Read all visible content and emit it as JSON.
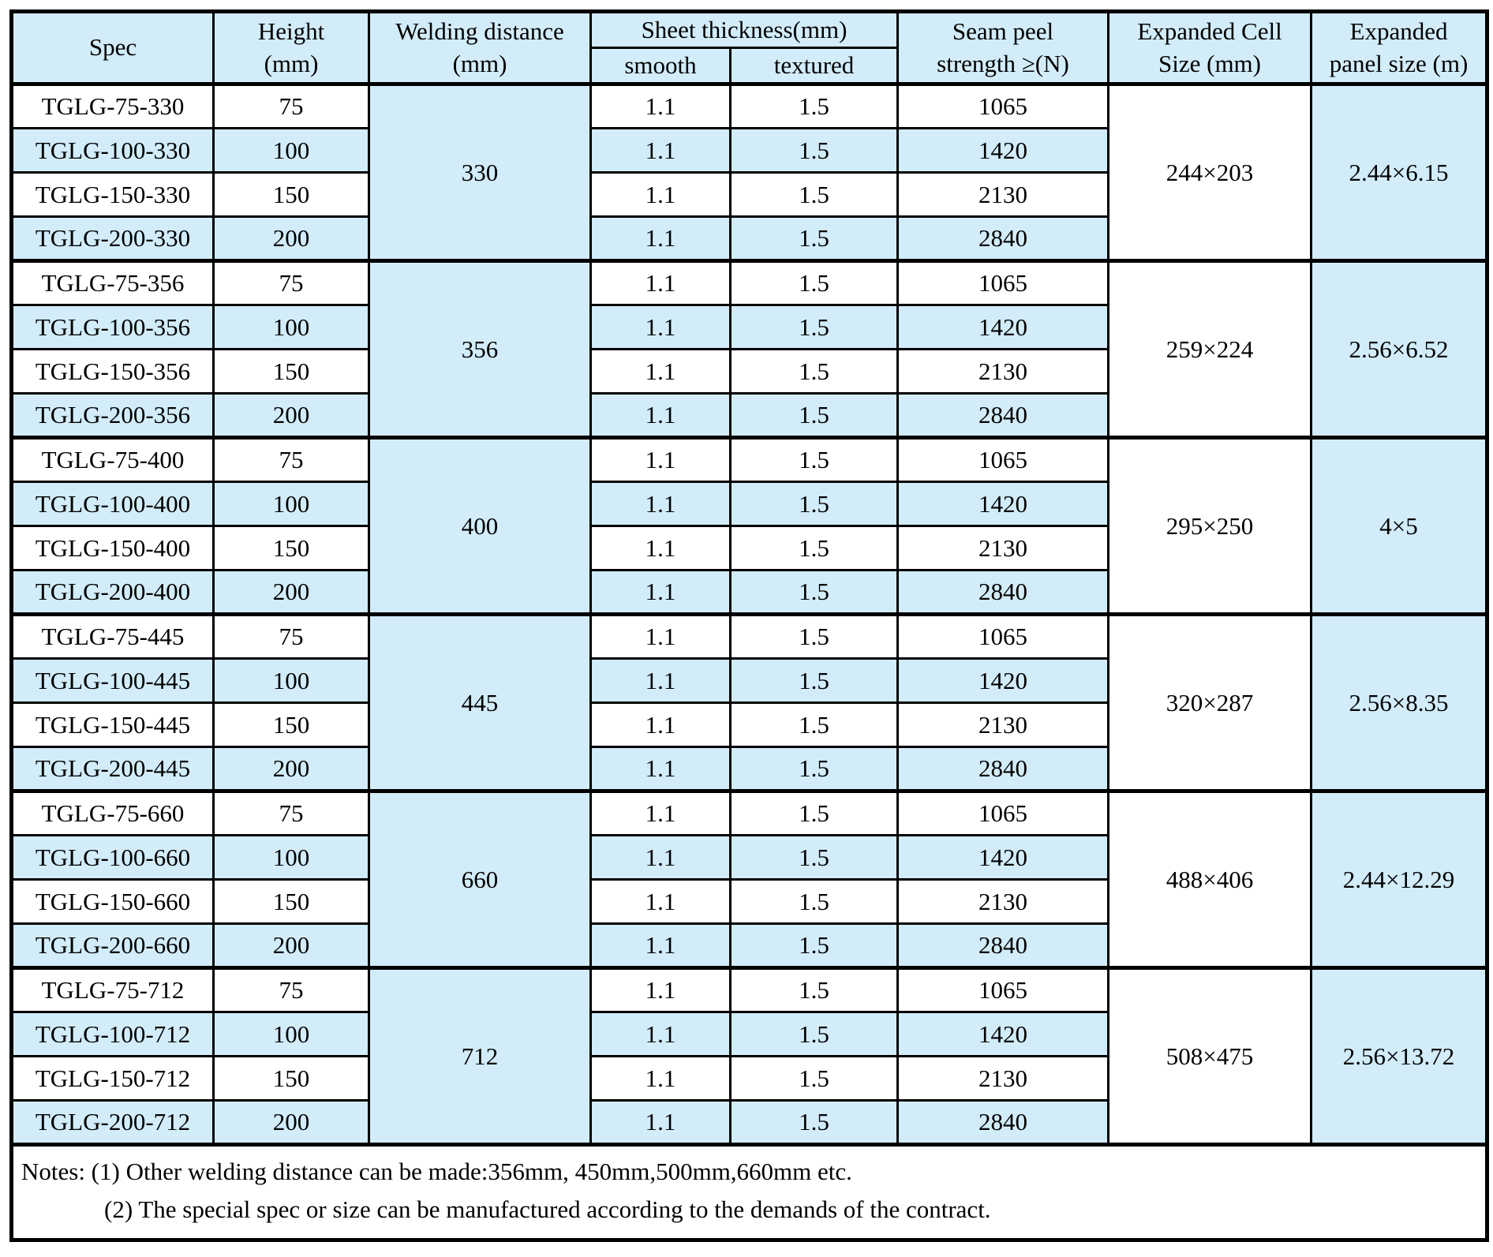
{
  "colors": {
    "row_alt": "#d2ecf9",
    "header_bg": "#d2ecf9",
    "border": "#000000",
    "text": "#000000",
    "row_white": "#ffffff"
  },
  "table": {
    "headers": {
      "spec": "Spec",
      "height_line1": "Height",
      "height_line2": "(mm)",
      "welding_line1": "Welding distance",
      "welding_line2": "(mm)",
      "sheet_thickness": "Sheet thickness(mm)",
      "smooth": "smooth",
      "textured": "textured",
      "seam_line1": "Seam peel",
      "seam_line2": "strength ≥(N)",
      "cell_line1": "Expanded Cell",
      "cell_line2": "Size (mm)",
      "panel_line1": "Expanded",
      "panel_line2": "panel size (m)"
    },
    "groups": [
      {
        "welding_distance": "330",
        "expanded_cell_size": "244×203",
        "expanded_panel_size": "2.44×6.15",
        "rows": [
          {
            "spec": "TGLG-75-330",
            "height": "75",
            "smooth": "1.1",
            "textured": "1.5",
            "seam": "1065"
          },
          {
            "spec": "TGLG-100-330",
            "height": "100",
            "smooth": "1.1",
            "textured": "1.5",
            "seam": "1420"
          },
          {
            "spec": "TGLG-150-330",
            "height": "150",
            "smooth": "1.1",
            "textured": "1.5",
            "seam": "2130"
          },
          {
            "spec": "TGLG-200-330",
            "height": "200",
            "smooth": "1.1",
            "textured": "1.5",
            "seam": "2840"
          }
        ]
      },
      {
        "welding_distance": "356",
        "expanded_cell_size": "259×224",
        "expanded_panel_size": "2.56×6.52",
        "rows": [
          {
            "spec": "TGLG-75-356",
            "height": "75",
            "smooth": "1.1",
            "textured": "1.5",
            "seam": "1065"
          },
          {
            "spec": "TGLG-100-356",
            "height": "100",
            "smooth": "1.1",
            "textured": "1.5",
            "seam": "1420"
          },
          {
            "spec": "TGLG-150-356",
            "height": "150",
            "smooth": "1.1",
            "textured": "1.5",
            "seam": "2130"
          },
          {
            "spec": "TGLG-200-356",
            "height": "200",
            "smooth": "1.1",
            "textured": "1.5",
            "seam": "2840"
          }
        ]
      },
      {
        "welding_distance": "400",
        "expanded_cell_size": "295×250",
        "expanded_panel_size": "4×5",
        "rows": [
          {
            "spec": "TGLG-75-400",
            "height": "75",
            "smooth": "1.1",
            "textured": "1.5",
            "seam": "1065"
          },
          {
            "spec": "TGLG-100-400",
            "height": "100",
            "smooth": "1.1",
            "textured": "1.5",
            "seam": "1420"
          },
          {
            "spec": "TGLG-150-400",
            "height": "150",
            "smooth": "1.1",
            "textured": "1.5",
            "seam": "2130"
          },
          {
            "spec": "TGLG-200-400",
            "height": "200",
            "smooth": "1.1",
            "textured": "1.5",
            "seam": "2840"
          }
        ]
      },
      {
        "welding_distance": "445",
        "expanded_cell_size": "320×287",
        "expanded_panel_size": "2.56×8.35",
        "rows": [
          {
            "spec": "TGLG-75-445",
            "height": "75",
            "smooth": "1.1",
            "textured": "1.5",
            "seam": "1065"
          },
          {
            "spec": "TGLG-100-445",
            "height": "100",
            "smooth": "1.1",
            "textured": "1.5",
            "seam": "1420"
          },
          {
            "spec": "TGLG-150-445",
            "height": "150",
            "smooth": "1.1",
            "textured": "1.5",
            "seam": "2130"
          },
          {
            "spec": "TGLG-200-445",
            "height": "200",
            "smooth": "1.1",
            "textured": "1.5",
            "seam": "2840"
          }
        ]
      },
      {
        "welding_distance": "660",
        "expanded_cell_size": "488×406",
        "expanded_panel_size": "2.44×12.29",
        "rows": [
          {
            "spec": "TGLG-75-660",
            "height": "75",
            "smooth": "1.1",
            "textured": "1.5",
            "seam": "1065"
          },
          {
            "spec": "TGLG-100-660",
            "height": "100",
            "smooth": "1.1",
            "textured": "1.5",
            "seam": "1420"
          },
          {
            "spec": "TGLG-150-660",
            "height": "150",
            "smooth": "1.1",
            "textured": "1.5",
            "seam": "2130"
          },
          {
            "spec": "TGLG-200-660",
            "height": "200",
            "smooth": "1.1",
            "textured": "1.5",
            "seam": "2840"
          }
        ]
      },
      {
        "welding_distance": "712",
        "expanded_cell_size": "508×475",
        "expanded_panel_size": "2.56×13.72",
        "rows": [
          {
            "spec": "TGLG-75-712",
            "height": "75",
            "smooth": "1.1",
            "textured": "1.5",
            "seam": "1065"
          },
          {
            "spec": "TGLG-100-712",
            "height": "100",
            "smooth": "1.1",
            "textured": "1.5",
            "seam": "1420"
          },
          {
            "spec": "TGLG-150-712",
            "height": "150",
            "smooth": "1.1",
            "textured": "1.5",
            "seam": "2130"
          },
          {
            "spec": "TGLG-200-712",
            "height": "200",
            "smooth": "1.1",
            "textured": "1.5",
            "seam": "2840"
          }
        ]
      }
    ],
    "notes": {
      "line1": "Notes: (1) Other welding distance can be made:356mm, 450mm,500mm,660mm etc.",
      "line2": "(2) The special spec or size can be manufactured according to the demands of the contract."
    }
  }
}
